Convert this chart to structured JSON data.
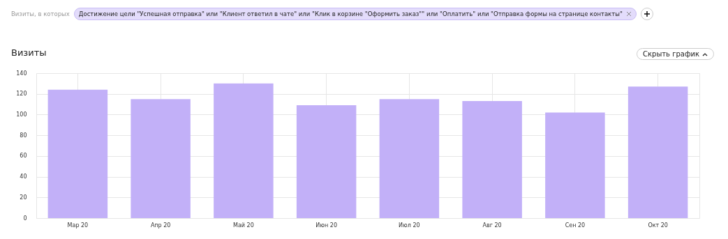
{
  "chart_data": {
    "type": "bar",
    "title": "Визиты",
    "subtitle": "Визиты, в которых",
    "annotations": [
      "Достижение цели \"Успешная отправка\" или \"Клиент ответил в чате\" или \"Клик в корзине \"Оформить заказ\"\" или \"Оплатить\" или \"Отправка формы на странице контакты\"",
      "Скрыть график"
    ],
    "categories": [
      "Мар 20",
      "Апр 20",
      "Май 20",
      "Июн 20",
      "Июл 20",
      "Авг 20",
      "Сен 20",
      "Окт 20"
    ],
    "values": [
      124,
      115,
      130,
      109,
      115,
      113,
      102,
      127
    ],
    "color": "#c2b0f8",
    "ylim": [
      0,
      140
    ],
    "yticks": [
      0,
      20,
      40,
      60,
      80,
      100,
      120,
      140
    ],
    "grid": true
  }
}
